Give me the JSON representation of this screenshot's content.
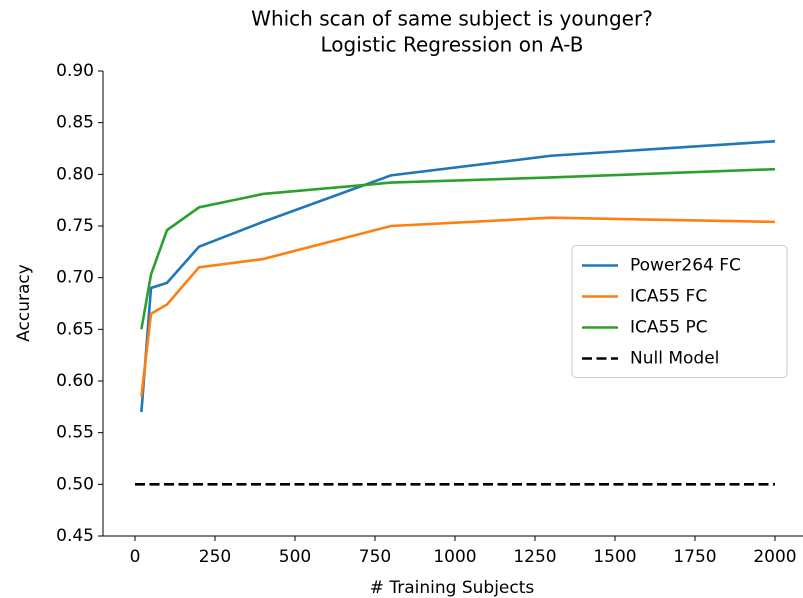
{
  "chart_data": {
    "type": "line",
    "title": "Which scan of same subject is younger?",
    "subtitle": "Logistic Regression on A-B",
    "x_label": "# Training Subjects",
    "y_label": "Accuracy",
    "series": [
      {
        "name": "Power264 FC",
        "color": "#1f77b4",
        "x": [
          20,
          50,
          100,
          200,
          400,
          800,
          1300,
          2000
        ],
        "values": [
          0.57,
          0.69,
          0.695,
          0.73,
          0.754,
          0.799,
          0.818,
          0.832
        ]
      },
      {
        "name": "ICA55 FC",
        "color": "#ff7f0e",
        "x": [
          20,
          50,
          100,
          200,
          400,
          800,
          1300,
          2000
        ],
        "values": [
          0.585,
          0.665,
          0.674,
          0.71,
          0.718,
          0.75,
          0.758,
          0.754
        ]
      },
      {
        "name": "ICA55 PC",
        "color": "#2ca02c",
        "x": [
          20,
          50,
          100,
          200,
          400,
          800,
          1300,
          2000
        ],
        "values": [
          0.65,
          0.703,
          0.746,
          0.768,
          0.781,
          0.792,
          0.797,
          0.805
        ]
      },
      {
        "name": "Null Model",
        "color": "#000000",
        "dash": "dashed",
        "x": [
          0,
          2000
        ],
        "values": [
          0.5,
          0.5
        ]
      }
    ],
    "xlim": [
      -100,
      2100
    ],
    "ylim": [
      0.45,
      0.9
    ],
    "xticks": [
      0,
      250,
      500,
      750,
      1000,
      1250,
      1500,
      1750,
      2000
    ],
    "yticks": [
      {
        "value": 0.45,
        "label": "0.45"
      },
      {
        "value": 0.5,
        "label": "0.50"
      },
      {
        "value": 0.55,
        "label": "0.55"
      },
      {
        "value": 0.6,
        "label": "0.60"
      },
      {
        "value": 0.65,
        "label": "0.65"
      },
      {
        "value": 0.7,
        "label": "0.70"
      },
      {
        "value": 0.75,
        "label": "0.75"
      },
      {
        "value": 0.8,
        "label": "0.80"
      },
      {
        "value": 0.85,
        "label": "0.85"
      },
      {
        "value": 0.9,
        "label": "0.90"
      }
    ],
    "legend": "center right"
  }
}
